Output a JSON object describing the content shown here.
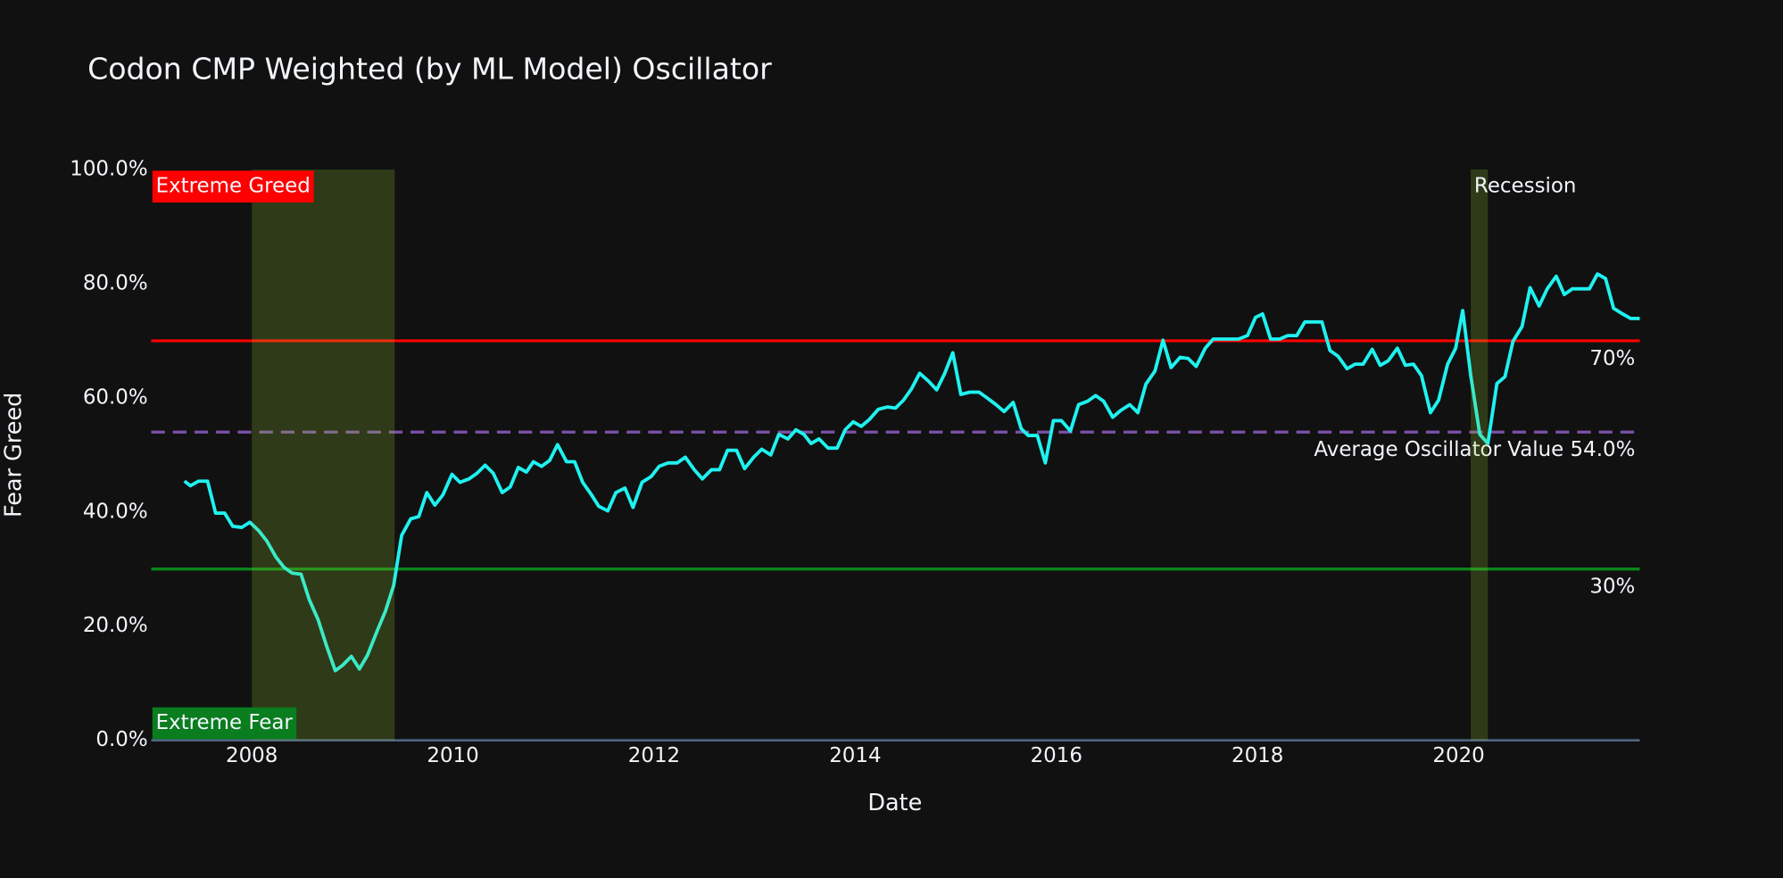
{
  "chart_data": {
    "type": "line",
    "title": "Codon CMP Weighted (by ML Model) Oscillator",
    "x_label": "Date",
    "y_label": "Fear Greed",
    "color": "#1ff2f0",
    "xlim": [
      2007.0,
      2021.8
    ],
    "xticks": [
      2008,
      2010,
      2012,
      2014,
      2016,
      2018,
      2020
    ],
    "ylim": [
      0,
      100
    ],
    "yticks": [
      {
        "value": 0,
        "label": "0.0%"
      },
      {
        "value": 20,
        "label": "20.0%"
      },
      {
        "value": 40,
        "label": "40.0%"
      },
      {
        "value": 60,
        "label": "60.0%"
      },
      {
        "value": 80,
        "label": "80.0%"
      },
      {
        "value": 100,
        "label": "100.0%"
      }
    ],
    "grid": false,
    "x": [
      2007.33,
      2007.39,
      2007.47,
      2007.56,
      2007.64,
      2007.73,
      2007.81,
      2007.9,
      2007.98,
      2008.07,
      2008.15,
      2008.24,
      2008.32,
      2008.4,
      2008.49,
      2008.57,
      2008.66,
      2008.74,
      2008.83,
      2008.9,
      2008.99,
      2009.07,
      2009.15,
      2009.24,
      2009.33,
      2009.41,
      2009.49,
      2009.58,
      2009.66,
      2009.74,
      2009.82,
      2009.9,
      2009.99,
      2010.07,
      2010.16,
      2010.24,
      2010.32,
      2010.4,
      2010.49,
      2010.57,
      2010.65,
      2010.73,
      2010.8,
      2010.88,
      2010.96,
      2011.04,
      2011.13,
      2011.21,
      2011.29,
      2011.37,
      2011.45,
      2011.54,
      2011.62,
      2011.71,
      2011.79,
      2011.88,
      2011.97,
      2012.05,
      2012.14,
      2012.23,
      2012.31,
      2012.4,
      2012.48,
      2012.57,
      2012.65,
      2012.73,
      2012.82,
      2012.9,
      2012.99,
      2013.07,
      2013.16,
      2013.24,
      2013.33,
      2013.41,
      2013.49,
      2013.56,
      2013.64,
      2013.73,
      2013.82,
      2013.9,
      2013.98,
      2014.06,
      2014.14,
      2014.23,
      2014.32,
      2014.4,
      2014.48,
      2014.56,
      2014.64,
      2014.73,
      2014.81,
      2014.89,
      2014.97,
      2015.05,
      2015.14,
      2015.23,
      2015.31,
      2015.4,
      2015.48,
      2015.57,
      2015.65,
      2015.72,
      2015.81,
      2015.89,
      2015.97,
      2016.05,
      2016.14,
      2016.22,
      2016.31,
      2016.39,
      2016.47,
      2016.56,
      2016.64,
      2016.73,
      2016.81,
      2016.89,
      2016.98,
      2017.06,
      2017.14,
      2017.23,
      2017.31,
      2017.39,
      2017.48,
      2017.56,
      2017.64,
      2017.73,
      2017.81,
      2017.9,
      2017.98,
      2018.05,
      2018.13,
      2018.22,
      2018.3,
      2018.39,
      2018.47,
      2018.55,
      2018.64,
      2018.72,
      2018.8,
      2018.89,
      2018.97,
      2019.05,
      2019.14,
      2019.22,
      2019.3,
      2019.39,
      2019.47,
      2019.55,
      2019.63,
      2019.72,
      2019.8,
      2019.89,
      2019.97,
      2020.04,
      2020.12,
      2020.21,
      2020.29,
      2020.38,
      2020.46,
      2020.54,
      2020.63,
      2020.71,
      2020.8,
      2020.88,
      2020.97,
      2021.05,
      2021.13,
      2021.22,
      2021.3,
      2021.38,
      2021.46,
      2021.54,
      2021.63,
      2021.71,
      2021.8
    ],
    "values": [
      45.4,
      44.6,
      45.4,
      45.4,
      39.8,
      39.8,
      37.5,
      37.3,
      38.2,
      36.7,
      34.9,
      32.1,
      30.3,
      29.3,
      29.1,
      24.7,
      21.1,
      16.7,
      12.2,
      13.1,
      14.7,
      12.5,
      14.9,
      18.9,
      22.7,
      27.1,
      35.9,
      38.8,
      39.2,
      43.4,
      41.2,
      43.0,
      46.6,
      45.2,
      45.8,
      46.8,
      48.2,
      46.8,
      43.4,
      44.4,
      47.8,
      47.0,
      48.8,
      48.0,
      49.0,
      51.8,
      48.8,
      48.8,
      45.2,
      43.2,
      41.0,
      40.2,
      43.4,
      44.2,
      40.8,
      45.2,
      46.2,
      48.0,
      48.6,
      48.6,
      49.6,
      47.4,
      45.8,
      47.4,
      47.4,
      50.8,
      50.8,
      47.6,
      49.6,
      51.0,
      50.0,
      53.6,
      52.8,
      54.4,
      53.6,
      52.0,
      52.8,
      51.2,
      51.2,
      54.4,
      55.8,
      55.0,
      56.2,
      58.0,
      58.4,
      58.2,
      59.6,
      61.6,
      64.3,
      62.9,
      61.4,
      64.3,
      67.9,
      60.6,
      61.0,
      61.0,
      60.0,
      58.8,
      57.6,
      59.2,
      54.6,
      53.4,
      53.4,
      48.6,
      56.0,
      56.0,
      54.2,
      58.8,
      59.4,
      60.4,
      59.4,
      56.6,
      57.8,
      58.8,
      57.4,
      62.4,
      64.7,
      70.1,
      65.3,
      67.1,
      66.9,
      65.5,
      68.7,
      70.3,
      70.3,
      70.3,
      70.3,
      70.9,
      74.1,
      74.7,
      70.3,
      70.3,
      70.9,
      70.9,
      73.3,
      73.3,
      73.3,
      68.3,
      67.3,
      65.1,
      65.9,
      65.9,
      68.5,
      65.7,
      66.5,
      68.7,
      65.7,
      65.9,
      63.9,
      57.4,
      59.6,
      65.9,
      68.7,
      75.3,
      63.9,
      53.6,
      52.0,
      62.5,
      63.7,
      69.9,
      72.5,
      79.3,
      76.1,
      79.1,
      81.3,
      78.1,
      79.1,
      79.1,
      79.1,
      81.7,
      80.9,
      75.7,
      74.7,
      73.9,
      73.9
    ],
    "reference_lines": [
      {
        "value": 70,
        "label": "70%",
        "color": "#ff0000",
        "dash": false
      },
      {
        "value": 30,
        "label": "30%",
        "color": "#0a8a1a",
        "dash": false
      },
      {
        "value": 54,
        "label": "Average Oscillator Value 54.0%",
        "color": "#7b52a8",
        "dash": true
      }
    ],
    "shades": [
      {
        "x0": 2008.0,
        "x1": 2009.42
      },
      {
        "x0": 2020.12,
        "x1": 2020.29
      }
    ],
    "shade_label": "Recession",
    "shade_color": "#9acd32",
    "zones": [
      {
        "label": "Extreme Greed",
        "color": "#ff0000",
        "position": "top"
      },
      {
        "label": "Extreme Fear",
        "color": "#0a7d1f",
        "position": "bottom"
      }
    ]
  }
}
